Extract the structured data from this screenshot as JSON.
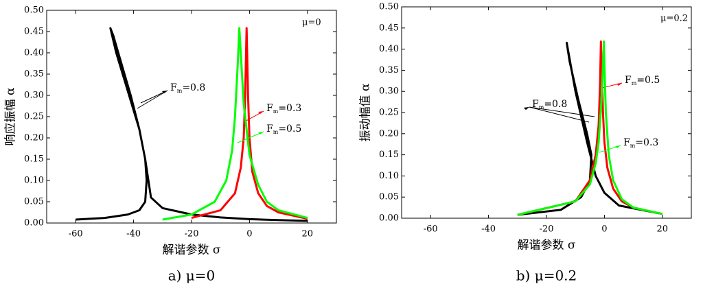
{
  "chart_data": [
    {
      "type": "line",
      "annotation": "μ=0",
      "xlabel": "解谐参数 σ",
      "ylabel": "响应振幅 α",
      "caption": "a) μ=0",
      "xlim": [
        -70,
        30
      ],
      "xticks": [
        -60,
        -40,
        -20,
        0,
        20
      ],
      "ylim": [
        0,
        0.5
      ],
      "yticks": [
        {
          "value": 0,
          "label": "0.00"
        },
        {
          "value": 0.05,
          "label": "0.05"
        },
        {
          "value": 0.1,
          "label": "0.10"
        },
        {
          "value": 0.15,
          "label": "0.15"
        },
        {
          "value": 0.2,
          "label": "0.20"
        },
        {
          "value": 0.25,
          "label": "0.25"
        },
        {
          "value": 0.3,
          "label": "0.30"
        },
        {
          "value": 0.35,
          "label": "0.35"
        },
        {
          "value": 0.4,
          "label": "0.40"
        },
        {
          "value": 0.45,
          "label": "0.45"
        },
        {
          "value": 0.5,
          "label": "0.50"
        }
      ],
      "series": [
        {
          "name": "Fm=0.8",
          "color": "#000000",
          "x": [
            -60,
            -50,
            -42,
            -38,
            -36,
            -35.5,
            -36,
            -38,
            -42,
            -46,
            -48,
            -47,
            -44,
            -41,
            -38,
            -36,
            -34,
            -30,
            -20,
            -10,
            0,
            10,
            20
          ],
          "values": [
            0.008,
            0.012,
            0.02,
            0.03,
            0.05,
            0.1,
            0.15,
            0.22,
            0.31,
            0.4,
            0.458,
            0.44,
            0.37,
            0.3,
            0.22,
            0.15,
            0.06,
            0.035,
            0.02,
            0.013,
            0.009,
            0.007,
            0.005
          ]
        },
        {
          "name": "Fm=0.3",
          "color": "#ff0000",
          "x": [
            -20,
            -10,
            -5,
            -3,
            -2,
            -1.5,
            -1,
            -0.8,
            -0.5,
            0,
            1,
            3,
            6,
            10,
            20
          ],
          "values": [
            0.012,
            0.03,
            0.07,
            0.13,
            0.2,
            0.3,
            0.458,
            0.4,
            0.3,
            0.2,
            0.12,
            0.07,
            0.04,
            0.025,
            0.01
          ]
        },
        {
          "name": "Fm=0.5",
          "color": "#00ff00",
          "x": [
            -30,
            -20,
            -12,
            -8,
            -6,
            -5,
            -4,
            -3.5,
            -3,
            -2,
            0,
            3,
            6,
            10,
            20
          ],
          "values": [
            0.008,
            0.02,
            0.05,
            0.1,
            0.17,
            0.25,
            0.38,
            0.458,
            0.4,
            0.28,
            0.16,
            0.09,
            0.05,
            0.03,
            0.012
          ]
        }
      ]
    },
    {
      "type": "line",
      "annotation": "μ=0.2",
      "xlabel": "解谐参数 σ",
      "ylabel": "振动幅值 α",
      "caption": "b) μ=0.2",
      "xlim": [
        -70,
        30
      ],
      "xticks": [
        -60,
        -40,
        -20,
        0,
        20
      ],
      "ylim": [
        0,
        0.5
      ],
      "yticks": [
        {
          "value": 0,
          "label": "0.00"
        },
        {
          "value": 0.05,
          "label": "0.05"
        },
        {
          "value": 0.1,
          "label": "0.10"
        },
        {
          "value": 0.15,
          "label": "0.15"
        },
        {
          "value": 0.2,
          "label": "0.20"
        },
        {
          "value": 0.25,
          "label": "0.25"
        },
        {
          "value": 0.3,
          "label": "0.30"
        },
        {
          "value": 0.35,
          "label": "0.35"
        },
        {
          "value": 0.4,
          "label": "0.40"
        },
        {
          "value": 0.45,
          "label": "0.45"
        },
        {
          "value": 0.5,
          "label": "0.50"
        }
      ],
      "series": [
        {
          "name": "Fm=0.8",
          "color": "#000000",
          "x": [
            -30,
            -15,
            -8,
            -5,
            -4.5,
            -6,
            -9,
            -12,
            -13,
            -10,
            -6,
            -3,
            0,
            5,
            20
          ],
          "values": [
            0.008,
            0.02,
            0.05,
            0.09,
            0.15,
            0.2,
            0.28,
            0.37,
            0.415,
            0.3,
            0.18,
            0.1,
            0.06,
            0.03,
            0.01
          ]
        },
        {
          "name": "Fm=0.5",
          "color": "#ff0000",
          "x": [
            -30,
            -10,
            -5,
            -3,
            -2,
            -1.5,
            -1.2,
            -1,
            -0.5,
            0,
            1,
            3,
            6,
            10,
            20
          ],
          "values": [
            0.008,
            0.04,
            0.09,
            0.15,
            0.22,
            0.32,
            0.418,
            0.36,
            0.25,
            0.18,
            0.12,
            0.07,
            0.04,
            0.025,
            0.01
          ]
        },
        {
          "name": "Fm=0.3",
          "color": "#00ff00",
          "x": [
            -30,
            -10,
            -5,
            -3,
            -2,
            -1,
            -0.5,
            -0.2,
            0,
            0.5,
            1.5,
            3,
            6,
            10,
            20
          ],
          "values": [
            0.008,
            0.04,
            0.08,
            0.13,
            0.18,
            0.28,
            0.36,
            0.418,
            0.36,
            0.25,
            0.15,
            0.09,
            0.045,
            0.025,
            0.01
          ]
        }
      ]
    }
  ]
}
